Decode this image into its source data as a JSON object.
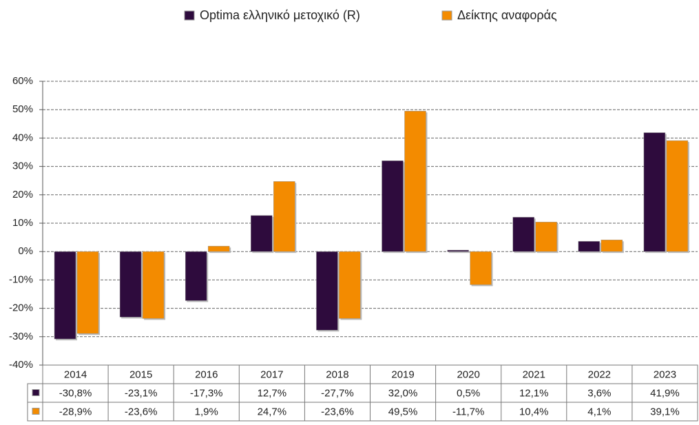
{
  "chart_data": {
    "type": "bar",
    "categories": [
      "2014",
      "2015",
      "2016",
      "2017",
      "2018",
      "2019",
      "2020",
      "2021",
      "2022",
      "2023"
    ],
    "series": [
      {
        "name": "Optima ελληνικό μετοχικό (R)",
        "color": "#2e0b3d",
        "values": [
          -30.8,
          -23.1,
          -17.3,
          12.7,
          -27.7,
          32.0,
          0.5,
          12.1,
          3.6,
          41.9
        ],
        "value_labels": [
          "-30,8%",
          "-23,1%",
          "-17,3%",
          "12,7%",
          "-27,7%",
          "32,0%",
          "0,5%",
          "12,1%",
          "3,6%",
          "41,9%"
        ]
      },
      {
        "name": "Δείκτης αναφοράς",
        "color": "#f38b00",
        "values": [
          -28.9,
          -23.6,
          1.9,
          24.7,
          -23.6,
          49.5,
          -11.7,
          10.4,
          4.1,
          39.1
        ],
        "value_labels": [
          "-28,9%",
          "-23,6%",
          "1,9%",
          "24,7%",
          "-23,6%",
          "49,5%",
          "-11,7%",
          "10,4%",
          "4,1%",
          "39,1%"
        ]
      }
    ],
    "ylim": [
      -40,
      60
    ],
    "yticks": [
      {
        "value": -40,
        "label": "-40%"
      },
      {
        "value": -30,
        "label": "-30%"
      },
      {
        "value": -20,
        "label": "-20%"
      },
      {
        "value": -10,
        "label": "-10%"
      },
      {
        "value": 0,
        "label": "0%"
      },
      {
        "value": 10,
        "label": "10%"
      },
      {
        "value": 20,
        "label": "20%"
      },
      {
        "value": 30,
        "label": "30%"
      },
      {
        "value": 40,
        "label": "40%"
      },
      {
        "value": 50,
        "label": "50%"
      },
      {
        "value": 60,
        "label": "60%"
      }
    ],
    "grid": true,
    "legend": "top"
  }
}
